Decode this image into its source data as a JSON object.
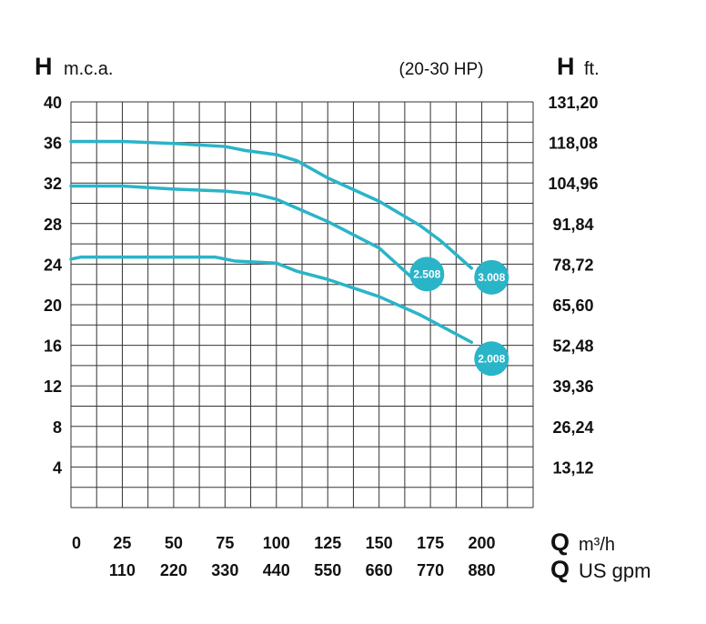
{
  "chart_data": {
    "type": "line",
    "subtitle": "(20-30 HP)",
    "y_label": {
      "symbol": "H",
      "unit": "m.c.a."
    },
    "y2_label": {
      "symbol": "H",
      "unit": "ft."
    },
    "x_label": {
      "symbol": "Q",
      "unit": "m³/h"
    },
    "x2_label": {
      "symbol": "Q",
      "unit": "US gpm"
    },
    "xlim": [
      0,
      225
    ],
    "ylim": [
      0,
      40
    ],
    "y2lim": [
      0,
      131.2
    ],
    "x2lim": [
      0,
      990
    ],
    "xticks": [
      0,
      25,
      50,
      75,
      100,
      125,
      150,
      175,
      200
    ],
    "x2ticks": [
      110,
      220,
      330,
      440,
      550,
      660,
      770,
      880
    ],
    "yticks": [
      4,
      8,
      12,
      16,
      20,
      24,
      28,
      32,
      36,
      40
    ],
    "y2ticks": [
      {
        "value": 13.12,
        "label": "13,12"
      },
      {
        "value": 26.24,
        "label": "26,24"
      },
      {
        "value": 39.36,
        "label": "39,36"
      },
      {
        "value": 52.48,
        "label": "52,48"
      },
      {
        "value": 65.6,
        "label": "65,60"
      },
      {
        "value": 78.72,
        "label": "78,72"
      },
      {
        "value": 91.84,
        "label": "91,84"
      },
      {
        "value": 104.96,
        "label": "104,96"
      },
      {
        "value": 118.08,
        "label": "118,08"
      },
      {
        "value": 131.2,
        "label": "131,20"
      }
    ],
    "xgrid": [
      0,
      12.5,
      25,
      37.5,
      50,
      62.5,
      75,
      87.5,
      100,
      112.5,
      125,
      137.5,
      150,
      162.5,
      175,
      187.5,
      200,
      212.5,
      225
    ],
    "ygrid": [
      0,
      2,
      4,
      6,
      8,
      10,
      12,
      14,
      16,
      18,
      20,
      22,
      24,
      26,
      28,
      30,
      32,
      34,
      36,
      38,
      40
    ],
    "grid": true,
    "series": [
      {
        "name": "3.008",
        "color": "#2ab4c8",
        "x": [
          0,
          25,
          50,
          75,
          85,
          100,
          110,
          125,
          150,
          170,
          180,
          195
        ],
        "values": [
          36.1,
          36.1,
          35.9,
          35.6,
          35.2,
          34.8,
          34.2,
          32.5,
          30.2,
          27.8,
          26.3,
          23.6
        ]
      },
      {
        "name": "2.508",
        "color": "#2ab4c8",
        "x": [
          0,
          25,
          50,
          75,
          90,
          100,
          125,
          150,
          168
        ],
        "values": [
          31.7,
          31.7,
          31.4,
          31.2,
          30.9,
          30.4,
          28.2,
          25.6,
          22.3
        ]
      },
      {
        "name": "2.008",
        "color": "#2ab4c8",
        "x": [
          0,
          5,
          25,
          50,
          70,
          80,
          100,
          110,
          125,
          150,
          170,
          195
        ],
        "values": [
          24.5,
          24.7,
          24.7,
          24.7,
          24.7,
          24.3,
          24.1,
          23.3,
          22.5,
          20.8,
          19.0,
          16.3
        ]
      }
    ]
  }
}
